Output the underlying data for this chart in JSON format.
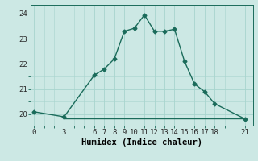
{
  "xlabel": "Humidex (Indice chaleur)",
  "bg_color": "#cce8e4",
  "line_color": "#1a6b5a",
  "x_data": [
    0,
    3,
    6,
    7,
    8,
    9,
    10,
    11,
    12,
    13,
    14,
    15,
    16,
    17,
    18,
    21
  ],
  "y_data": [
    20.1,
    19.9,
    21.55,
    21.8,
    22.2,
    23.3,
    23.42,
    23.95,
    23.3,
    23.3,
    23.38,
    22.1,
    21.2,
    20.9,
    20.42,
    19.82
  ],
  "x_flat": [
    3,
    6,
    7,
    8,
    9,
    10,
    11,
    12,
    13,
    14,
    15,
    16,
    17,
    18,
    21
  ],
  "y_flat": [
    19.85,
    19.85,
    19.85,
    19.85,
    19.85,
    19.85,
    19.85,
    19.85,
    19.85,
    19.85,
    19.85,
    19.85,
    19.85,
    19.85,
    19.85
  ],
  "xticks": [
    0,
    3,
    6,
    7,
    8,
    9,
    10,
    11,
    12,
    13,
    14,
    15,
    16,
    17,
    18,
    21
  ],
  "yticks": [
    20,
    21,
    22,
    23,
    24
  ],
  "xlim": [
    -0.3,
    21.8
  ],
  "ylim": [
    19.55,
    24.35
  ],
  "grid_color": "#a8d4ce",
  "marker": "D",
  "markersize": 2.5,
  "linewidth": 1.0,
  "xlabel_fontsize": 7.5,
  "tick_fontsize": 6.5
}
